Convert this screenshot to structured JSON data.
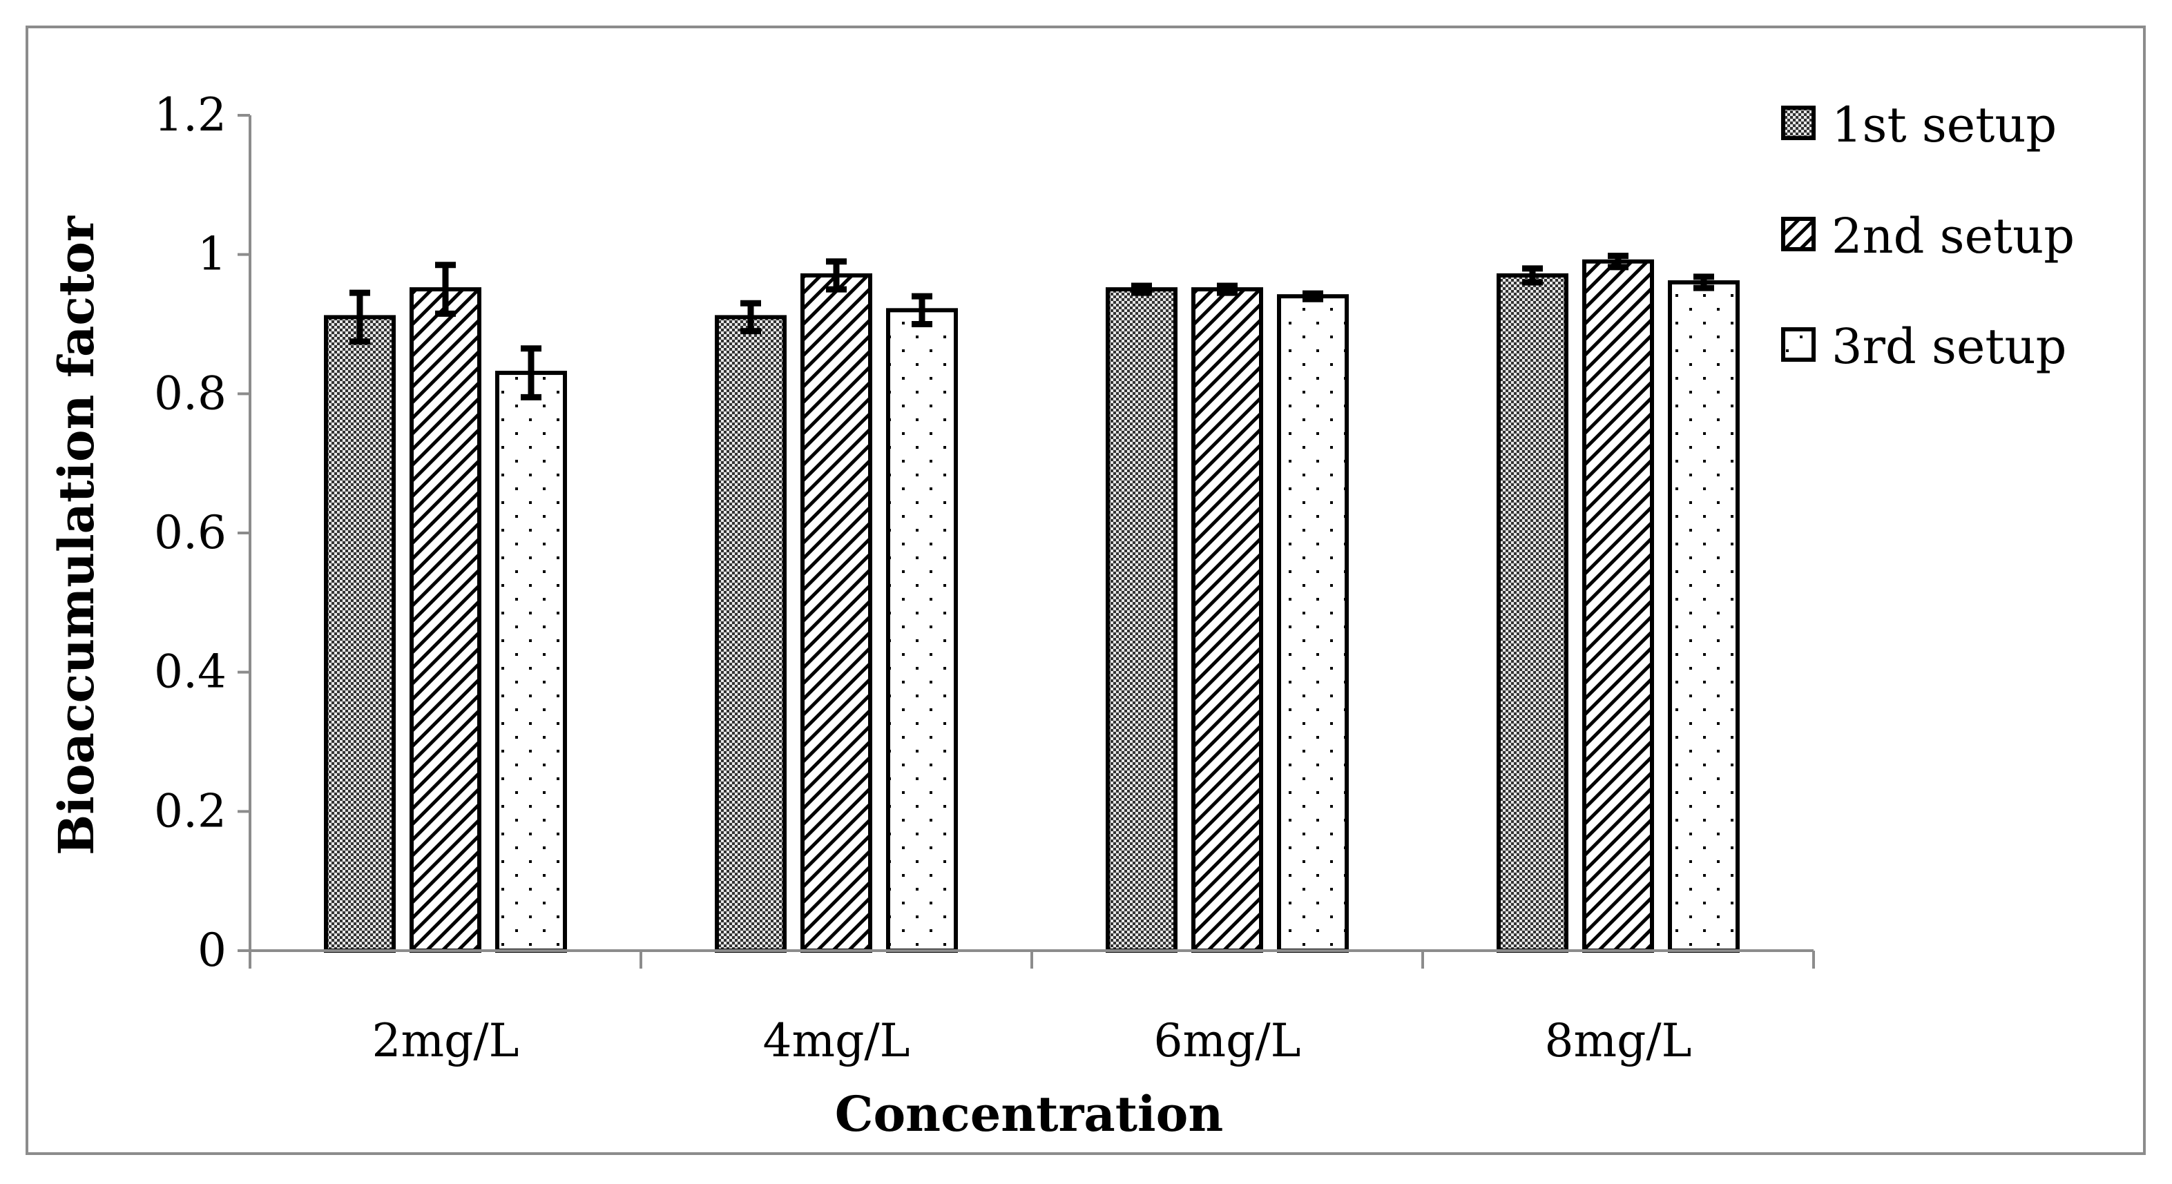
{
  "chart_data": {
    "type": "bar",
    "title": "",
    "xlabel": "Concentration",
    "ylabel": "Bioaccumulation factor",
    "ylim": [
      0,
      1.2
    ],
    "yticks": [
      0,
      0.2,
      0.4,
      0.6,
      0.8,
      1,
      1.2
    ],
    "ytick_labels": [
      "0",
      "0.2",
      "0.4",
      "0.6",
      "0.8",
      "1",
      "1.2"
    ],
    "categories": [
      "2mg/L",
      "4mg/L",
      "6mg/L",
      "8mg/L"
    ],
    "grid": false,
    "legend_position": "top-right",
    "series": [
      {
        "name": "1st setup",
        "pattern": "checker",
        "values": [
          0.91,
          0.91,
          0.95,
          0.97
        ],
        "errors": [
          0.035,
          0.02,
          0.005,
          0.01
        ]
      },
      {
        "name": "2nd setup",
        "pattern": "diagonal",
        "values": [
          0.95,
          0.97,
          0.95,
          0.99
        ],
        "errors": [
          0.035,
          0.02,
          0.005,
          0.008
        ]
      },
      {
        "name": "3rd setup",
        "pattern": "dots",
        "values": [
          0.83,
          0.92,
          0.94,
          0.96
        ],
        "errors": [
          0.035,
          0.02,
          0.004,
          0.008
        ]
      }
    ],
    "colors": {
      "bar_outline": "#000000",
      "axis": "#8c8c8c",
      "frame": "#8c8c8c",
      "checker_dark": "#333333",
      "checker_light": "#e6e6e6",
      "hatch": "#000000",
      "dot": "#000000"
    }
  }
}
